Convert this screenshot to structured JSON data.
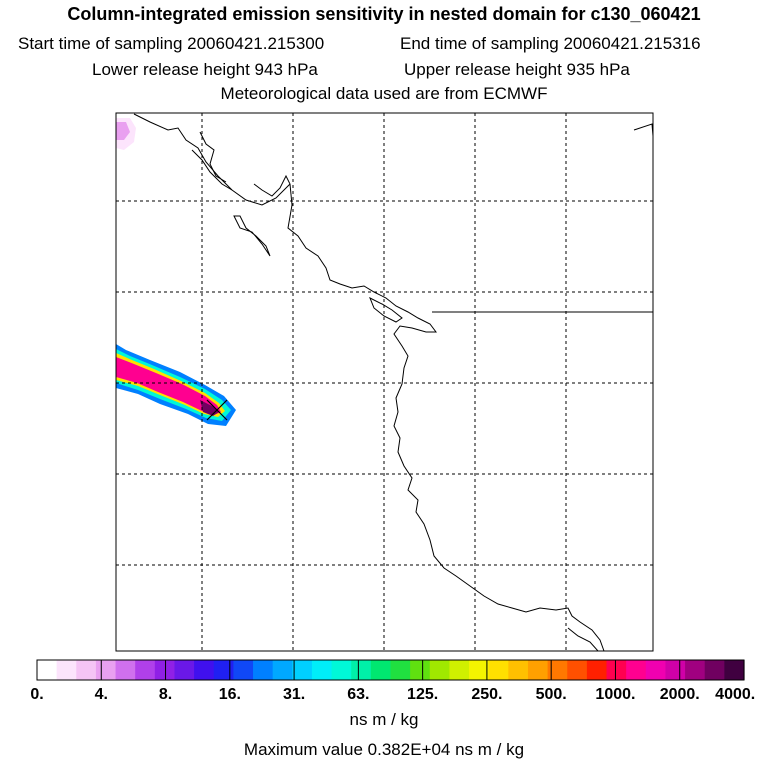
{
  "header": {
    "title": "Column-integrated emission sensitivity in nested domain for c130_060421",
    "start_time": "Start time of sampling 20060421.215300",
    "end_time": "End time of sampling 20060421.215316",
    "lower_release": "Lower release height  943 hPa",
    "upper_release": "Upper release height  935 hPa",
    "met_data": "Meteorological data used are from ECMWF"
  },
  "colorbar": {
    "tick_labels": [
      "0.",
      "4.",
      "8.",
      "16.",
      "31.",
      "63.",
      "125.",
      "250.",
      "500.",
      "1000.",
      "2000.",
      "4000."
    ],
    "colors": [
      "#ffffff",
      "#fce4fc",
      "#f5c4f5",
      "#e9a0f0",
      "#d070ee",
      "#b040ea",
      "#9020e6",
      "#6a18e8",
      "#4010ee",
      "#2020f2",
      "#1048f6",
      "#0080ff",
      "#00a8ff",
      "#00d0ff",
      "#00eef8",
      "#00f8d8",
      "#00f0a8",
      "#00e870",
      "#20e040",
      "#60e010",
      "#a0e800",
      "#d0f000",
      "#f4f400",
      "#ffe000",
      "#ffc000",
      "#ffa000",
      "#ff7800",
      "#ff5000",
      "#ff2000",
      "#ff0050",
      "#ff0090",
      "#f000b0",
      "#d000a8",
      "#a00080",
      "#700060",
      "#400040"
    ],
    "unit": "ns m / kg",
    "max_value": "Maximum value  0.382E+04 ns m / kg"
  },
  "map": {
    "gridlines": "dashed",
    "release_marker": "x-cross-icon",
    "plume_colors": [
      "#0080ff",
      "#00f8d8",
      "#ffe000",
      "#ff0090",
      "#700060"
    ]
  }
}
